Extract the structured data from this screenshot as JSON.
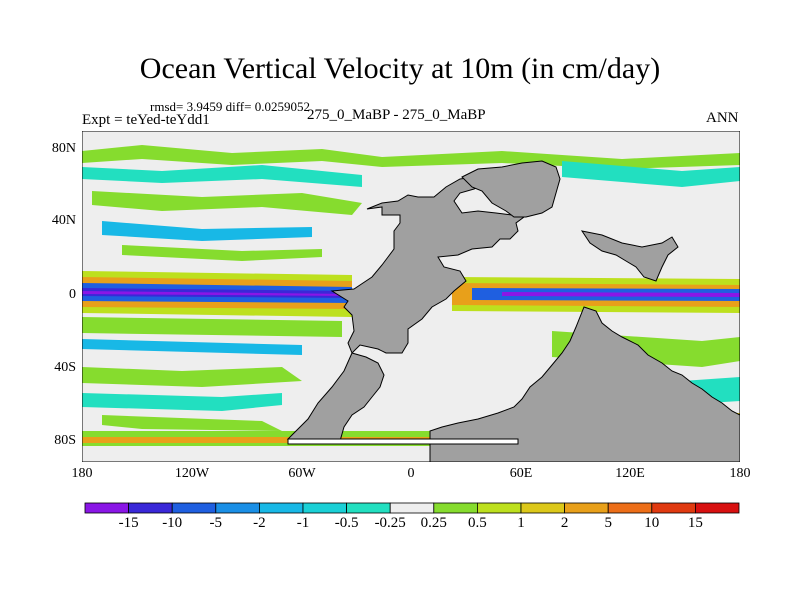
{
  "chart_data": {
    "type": "heatmap",
    "title": "Ocean Vertical Velocity at 10m (in cm/day)",
    "stats": "rmsd= 3.9459  diff= 0.0259052",
    "left_label": "Expt = teYed-teYdd1",
    "center_label": "275_0_MaBP - 275_0_MaBP",
    "right_label": "ANN",
    "x_ticks": [
      "180",
      "120W",
      "60W",
      "0",
      "60E",
      "120E",
      "180"
    ],
    "y_ticks": [
      "80N",
      "40N",
      "0",
      "40S",
      "80S"
    ],
    "xlim": [
      -180,
      180
    ],
    "ylim": [
      -90,
      90
    ],
    "colorbar_levels": [
      "-15",
      "-10",
      "-5",
      "-2",
      "-1",
      "-0.5",
      "-0.25",
      "0.25",
      "0.5",
      "1",
      "2",
      "5",
      "10",
      "15"
    ],
    "colorbar_colors": [
      "#8a16e6",
      "#3a28d8",
      "#1f5fe0",
      "#1a8fe6",
      "#18b8e6",
      "#1ad0d6",
      "#22dfc0",
      "#eeeeee",
      "#86dc2e",
      "#bde01e",
      "#dcc81a",
      "#e8a01a",
      "#ec6e18",
      "#e03a10",
      "#d81010"
    ],
    "land_color": "#a0a0a0"
  }
}
